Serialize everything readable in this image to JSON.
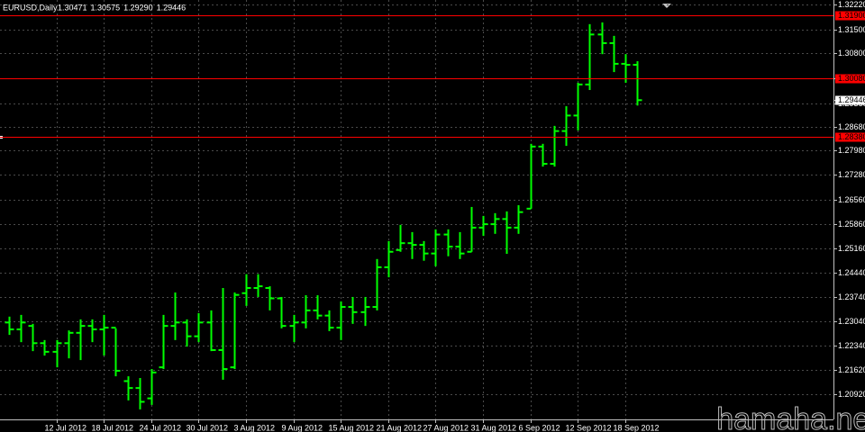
{
  "chart_data": {
    "type": "ohlc",
    "title": "EURUSD,Daily",
    "quote": [
      "1.30471",
      "1.30575",
      "1.29290",
      "1.29446"
    ],
    "watermark": "hamaha.net",
    "color": "#00ff00",
    "categories": [
      null,
      null,
      null,
      null,
      "12 Jul 2012",
      null,
      null,
      null,
      "18 Jul 2012",
      null,
      null,
      null,
      "24 Jul 2012",
      null,
      null,
      null,
      "30 Jul 2012",
      null,
      null,
      null,
      "3 Aug 2012",
      null,
      null,
      null,
      "9 Aug 2012",
      null,
      null,
      null,
      "15 Aug 2012",
      null,
      null,
      null,
      "21 Aug 2012",
      null,
      null,
      null,
      "27 Aug 2012",
      null,
      null,
      null,
      "31 Aug 2012",
      null,
      null,
      null,
      "6 Sep 2012",
      null,
      null,
      null,
      "12 Sep 2012",
      null,
      null,
      null,
      "18 Sep 2012",
      null
    ],
    "open": [
      1.23,
      1.228,
      1.229,
      1.224,
      1.2215,
      1.224,
      1.227,
      1.229,
      1.228,
      1.2285,
      1.213,
      1.211,
      1.208,
      1.217,
      1.229,
      1.23,
      1.226,
      1.23,
      1.222,
      1.217,
      1.2385,
      1.24,
      1.24,
      1.237,
      1.229,
      1.23,
      1.2335,
      1.232,
      1.2285,
      1.2345,
      1.233,
      1.2345,
      1.246,
      1.251,
      1.253,
      1.2525,
      1.25,
      1.2555,
      1.252,
      1.2505,
      1.2575,
      1.2585,
      1.26,
      1.2575,
      1.263,
      1.281,
      1.276,
      1.2855,
      1.29,
      1.299,
      1.3135,
      1.311,
      1.305,
      1.30471
    ],
    "high": [
      1.2317,
      1.2322,
      1.2296,
      1.2249,
      1.2249,
      1.2277,
      1.2309,
      1.2309,
      1.2322,
      1.2283,
      1.2144,
      1.2139,
      1.2165,
      1.2322,
      1.2387,
      1.2309,
      1.2327,
      1.2335,
      1.24,
      1.2387,
      1.244,
      1.244,
      1.2405,
      1.2374,
      1.2322,
      1.2379,
      1.2379,
      1.2335,
      1.2361,
      1.2374,
      1.2374,
      1.2484,
      1.2536,
      1.2583,
      1.2562,
      1.2536,
      1.257,
      1.257,
      1.2562,
      1.2635,
      1.2609,
      1.2617,
      1.2622,
      1.264,
      1.2818,
      1.2818,
      1.287,
      1.2927,
      1.2995,
      1.3165,
      1.317,
      1.3131,
      1.3078,
      1.30575
    ],
    "low": [
      1.2264,
      1.2243,
      1.2217,
      1.2204,
      1.217,
      1.2196,
      1.2191,
      1.2243,
      1.2204,
      1.2144,
      1.2074,
      1.2048,
      1.2061,
      1.2165,
      1.2249,
      1.223,
      1.2243,
      1.2217,
      1.2134,
      1.2165,
      1.2348,
      1.2374,
      1.2335,
      1.2283,
      1.2243,
      1.2283,
      1.2309,
      1.2275,
      1.2249,
      1.2296,
      1.229,
      1.2335,
      1.2431,
      1.2505,
      1.2484,
      1.2479,
      1.2463,
      1.2492,
      1.2484,
      1.2505,
      1.2551,
      1.2557,
      1.2499,
      1.2557,
      1.263,
      1.2752,
      1.2752,
      1.2812,
      1.2857,
      1.2974,
      1.3078,
      1.3026,
      1.2995,
      1.2929
    ],
    "close": [
      1.228,
      1.23,
      1.224,
      1.2215,
      1.224,
      1.227,
      1.229,
      1.228,
      1.2285,
      1.216,
      1.211,
      1.207,
      1.2155,
      1.229,
      1.23,
      1.226,
      1.23,
      1.222,
      1.2165,
      1.238,
      1.24,
      1.2405,
      1.237,
      1.229,
      1.23,
      1.2335,
      1.232,
      1.2285,
      1.2345,
      1.233,
      1.2345,
      1.246,
      1.2505,
      1.253,
      1.2525,
      1.25,
      1.2555,
      1.252,
      1.25,
      1.2575,
      1.2585,
      1.26,
      1.2575,
      1.262,
      1.281,
      1.276,
      1.2855,
      1.29,
      1.299,
      1.3135,
      1.311,
      1.305,
      1.3047,
      1.29446
    ],
    "ylim": [
      1.2019,
      1.3235
    ],
    "yticks": [
      {
        "value": 1.3222,
        "label": "1.32220"
      },
      {
        "value": 1.315,
        "label": "1.31500"
      },
      {
        "value": 1.308,
        "label": "1.30800"
      },
      {
        "value": 1.3008,
        "label": "1.30080"
      },
      {
        "value": 1.2936,
        "label": "1.29360"
      },
      {
        "value": 1.2868,
        "label": "1.28680"
      },
      {
        "value": 1.2798,
        "label": "1.27980"
      },
      {
        "value": 1.2728,
        "label": "1.27280"
      },
      {
        "value": 1.2656,
        "label": "1.26560"
      },
      {
        "value": 1.2586,
        "label": "1.25860"
      },
      {
        "value": 1.2516,
        "label": "1.25160"
      },
      {
        "value": 1.2444,
        "label": "1.24440"
      },
      {
        "value": 1.2374,
        "label": "1.23740"
      },
      {
        "value": 1.2304,
        "label": "1.23040"
      },
      {
        "value": 1.2234,
        "label": "1.22340"
      },
      {
        "value": 1.2162,
        "label": "1.21620"
      },
      {
        "value": 1.2092,
        "label": "1.20920"
      }
    ],
    "grid": true,
    "hlines": [
      {
        "value": 1.319,
        "label": "1.31900",
        "color": "#ff0000"
      },
      {
        "value": 1.3008,
        "label": "1.30080",
        "color": "#ff0000"
      },
      {
        "value": 1.2838,
        "label": "1.28380",
        "color": "#ff0000"
      }
    ],
    "last_price": {
      "value": 1.29446,
      "label": "1.29446"
    }
  }
}
